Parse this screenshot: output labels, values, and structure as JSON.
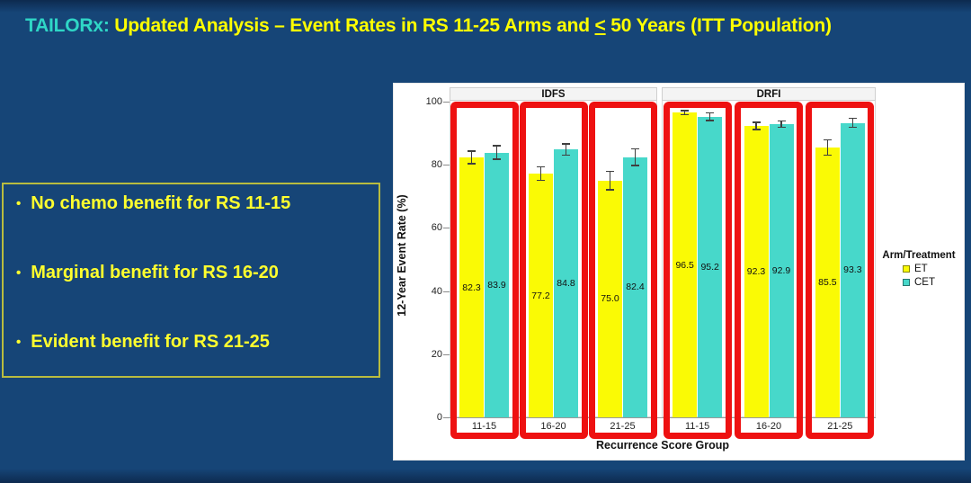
{
  "slide": {
    "title": {
      "prefix": "TAILORx:",
      "body_before": " Updated Analysis – Event Rates in RS 11-25 Arms and ",
      "leq_symbol": "<",
      "body_after": " 50 Years (ITT Population)"
    },
    "colors": {
      "background": "#164577",
      "title_prefix": "#2fd6c6",
      "title_body": "#ffff00",
      "bullet_text": "#ffff2e",
      "bullet_box_border": "#b9bc3f"
    }
  },
  "bullets": [
    {
      "text": "No chemo benefit for RS 11-15"
    },
    {
      "text": "Marginal benefit for RS 16-20"
    },
    {
      "text": "Evident benefit for RS 21-25"
    }
  ],
  "chart_data": {
    "type": "bar",
    "ylabel": "12-Year Event Rate (%)",
    "xlabel": "Recurrence Score Group",
    "ylim": [
      0,
      100
    ],
    "yticks": [
      0,
      20,
      40,
      60,
      80,
      100
    ],
    "grid": "off",
    "legend_position": "right",
    "legend": {
      "title": "Arm/Treatment",
      "entries": [
        {
          "label": "ET",
          "color": "#fafa05"
        },
        {
          "label": "CET",
          "color": "#47d8ca"
        }
      ]
    },
    "series_colors": {
      "ET": "#fafa05",
      "CET": "#47d8ca"
    },
    "highlight_box_color": "#ee1111",
    "facets": [
      {
        "label": "IDFS",
        "groups": [
          {
            "category": "11-15",
            "bars": [
              {
                "series": "ET",
                "value": 82.3,
                "label": "82.3",
                "error": 2.2
              },
              {
                "series": "CET",
                "value": 83.9,
                "label": "83.9",
                "error": 2.4
              }
            ]
          },
          {
            "category": "16-20",
            "bars": [
              {
                "series": "ET",
                "value": 77.2,
                "label": "77.2",
                "error": 2.4
              },
              {
                "series": "CET",
                "value": 84.8,
                "label": "84.8",
                "error": 2.0
              }
            ]
          },
          {
            "category": "21-25",
            "bars": [
              {
                "series": "ET",
                "value": 75.0,
                "label": "75.0",
                "error": 3.2
              },
              {
                "series": "CET",
                "value": 82.4,
                "label": "82.4",
                "error": 2.9
              }
            ]
          }
        ]
      },
      {
        "label": "DRFI",
        "groups": [
          {
            "category": "11-15",
            "bars": [
              {
                "series": "ET",
                "value": 96.5,
                "label": "96.5",
                "error": 0.8
              },
              {
                "series": "CET",
                "value": 95.2,
                "label": "95.2",
                "error": 1.4
              }
            ]
          },
          {
            "category": "16-20",
            "bars": [
              {
                "series": "ET",
                "value": 92.3,
                "label": "92.3",
                "error": 1.3
              },
              {
                "series": "CET",
                "value": 92.9,
                "label": "92.9",
                "error": 1.2
              }
            ]
          },
          {
            "category": "21-25",
            "bars": [
              {
                "series": "ET",
                "value": 85.5,
                "label": "85.5",
                "error": 2.6
              },
              {
                "series": "CET",
                "value": 93.3,
                "label": "93.3",
                "error": 1.6
              }
            ]
          }
        ]
      }
    ]
  }
}
